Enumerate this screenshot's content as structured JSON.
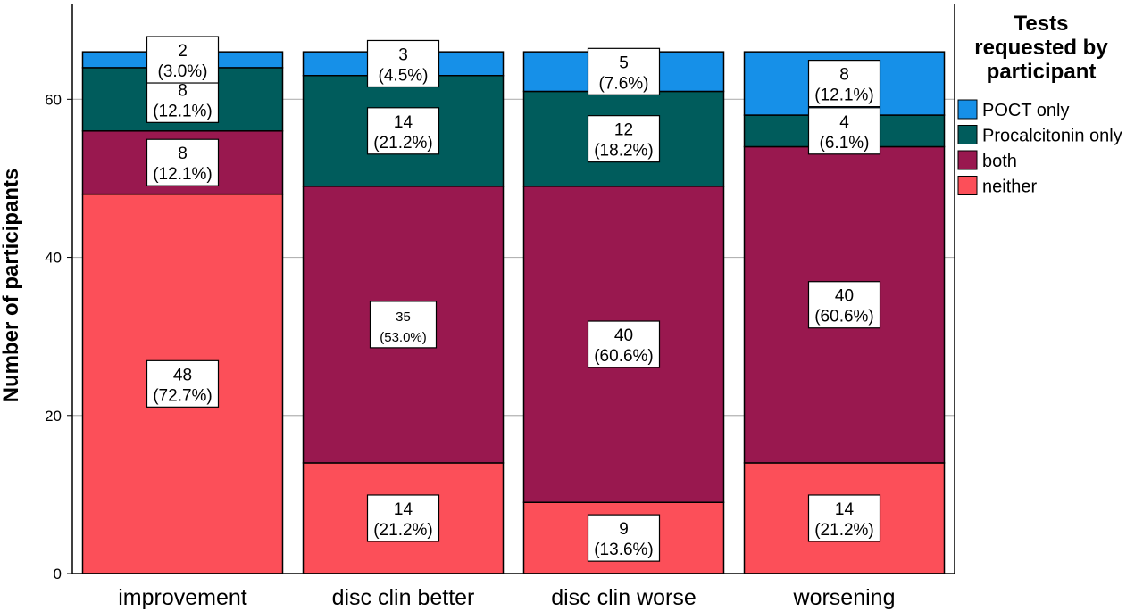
{
  "chart_data": {
    "type": "bar",
    "stacked": true,
    "title": "",
    "xlabel": "",
    "ylabel": "Number of participants",
    "ylim": [
      0,
      72
    ],
    "yticks": [
      0,
      20,
      40,
      60
    ],
    "grid": true,
    "categories": [
      "improvement",
      "disc clin better",
      "disc clin worse",
      "worsening"
    ],
    "legend": {
      "title": "Tests requested by participant",
      "title_lines": [
        "Tests",
        "requested by",
        "participant"
      ],
      "placement": "right"
    },
    "series": [
      {
        "name": "neither",
        "color": "#fc4f59",
        "values": [
          48,
          14,
          9,
          14
        ],
        "labels": [
          "(72.7%)",
          "(21.2%)",
          "(13.6%)",
          "(21.2%)"
        ]
      },
      {
        "name": "both",
        "color": "#99184f",
        "values": [
          8,
          35,
          40,
          40
        ],
        "labels": [
          "(12.1%)",
          "(53.0%)",
          "(60.6%)",
          "(60.6%)"
        ]
      },
      {
        "name": "Procalcitonin only",
        "color": "#005c5c",
        "values": [
          8,
          14,
          12,
          4
        ],
        "labels": [
          "(12.1%)",
          "(21.2%)",
          "(18.2%)",
          "(6.1%)"
        ]
      },
      {
        "name": "POCT only",
        "color": "#1690e8",
        "values": [
          2,
          3,
          5,
          8
        ],
        "labels": [
          "(3.0%)",
          "(4.5%)",
          "(7.6%)",
          "(12.1%)"
        ]
      }
    ],
    "legend_order": [
      "POCT only",
      "Procalcitonin only",
      "both",
      "neither"
    ]
  }
}
